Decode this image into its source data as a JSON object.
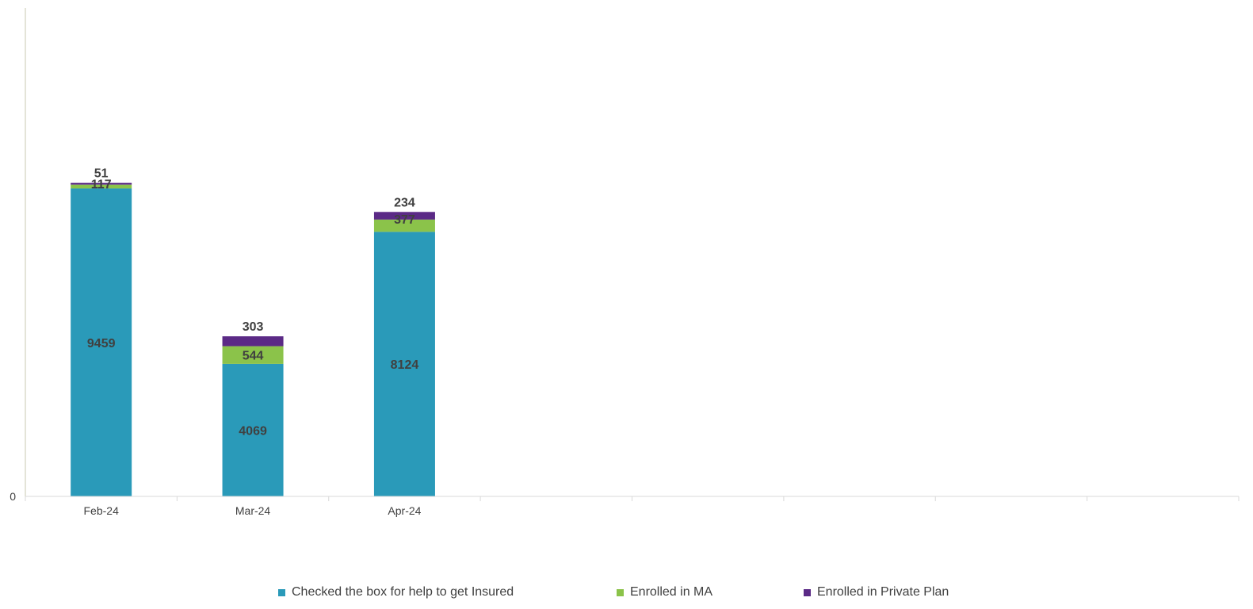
{
  "chart_data": {
    "type": "bar",
    "stacked": true,
    "categories": [
      "Feb-24",
      "Mar-24",
      "Apr-24",
      "",
      "",
      "",
      "",
      ""
    ],
    "series": [
      {
        "name": "Checked the box for help to get Insured",
        "color": "#2a9ab9",
        "values": [
          9459,
          4069,
          8124,
          null,
          null,
          null,
          null,
          null
        ]
      },
      {
        "name": "Enrolled in MA",
        "color": "#8bc34a",
        "values": [
          117,
          544,
          377,
          null,
          null,
          null,
          null,
          null
        ]
      },
      {
        "name": "Enrolled in Private Plan",
        "color": "#5b2a86",
        "values": [
          51,
          303,
          234,
          null,
          null,
          null,
          null,
          null
        ]
      }
    ],
    "y_tick_labels": [
      "0"
    ],
    "ylim": [
      0,
      15000
    ],
    "grid": false,
    "legend_position": "bottom"
  }
}
